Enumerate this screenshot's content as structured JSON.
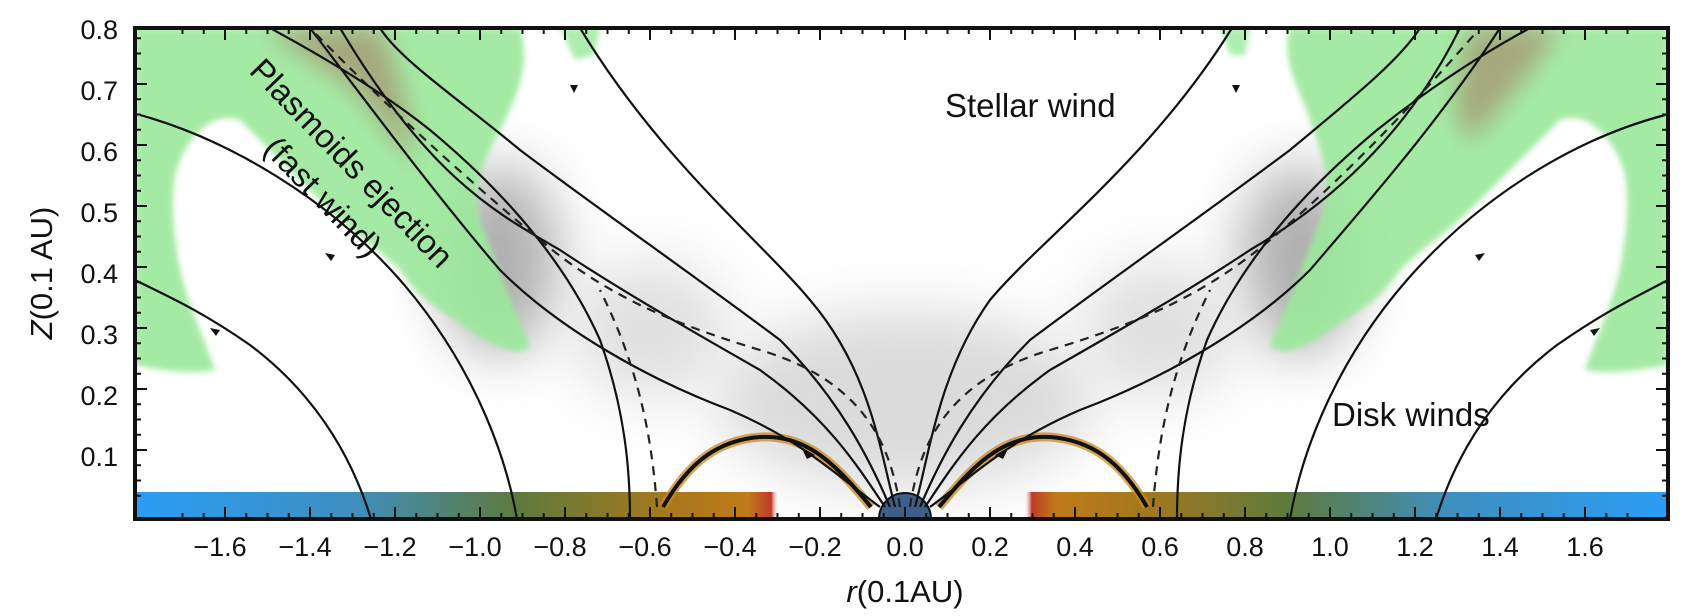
{
  "figure": {
    "y_axis": {
      "label_symbol": "Z",
      "label_unit": "(0.1 AU)",
      "range": [
        0,
        0.8
      ],
      "ticks": [
        "0.1",
        "0.2",
        "0.3",
        "0.4",
        "0.5",
        "0.6",
        "0.7",
        "0.8"
      ]
    },
    "x_axis": {
      "label_symbol": "r",
      "label_unit": "(0.1AU)",
      "range": [
        -1.8,
        1.8
      ],
      "ticks": [
        "−1.6",
        "−1.4",
        "−1.2",
        "−1.0",
        "−0.8",
        "−0.6",
        "−0.4",
        "−0.2",
        "0.0",
        "0.2",
        "0.4",
        "0.6",
        "0.8",
        "1.0",
        "1.2",
        "1.4",
        "1.6"
      ]
    },
    "annotations": {
      "stellar_wind": "Stellar wind",
      "disk_winds": "Disk winds",
      "plasmoids_line1": "Plasmoids ejection",
      "plasmoids_line2": "(fast wind)"
    },
    "colors": {
      "plasmoid_fill": "#9be89b",
      "plasmoid_core": "#a8735f",
      "disk_outer": "#2a9df4",
      "disk_inner": "#b07a1e",
      "field_line": "#111111",
      "loop": "#c8891c"
    }
  }
}
